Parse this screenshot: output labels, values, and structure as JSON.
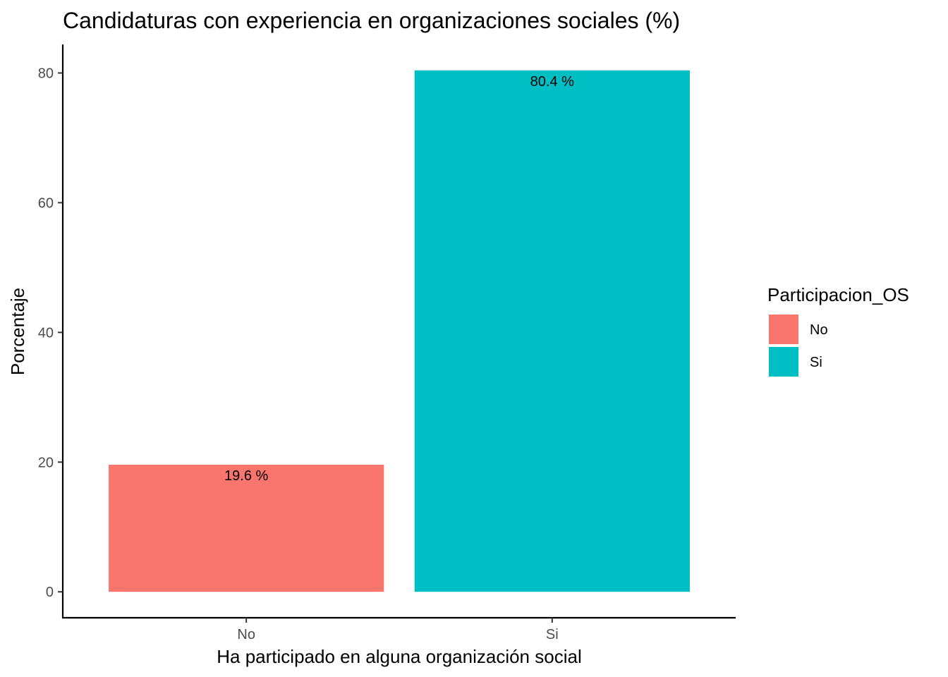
{
  "chart_data": {
    "type": "bar",
    "title": "Candidaturas con experiencia en organizaciones sociales (%)",
    "xlabel": "Ha participado en alguna organización social",
    "ylabel": "Porcentaje",
    "categories": [
      "No",
      "Si"
    ],
    "values": [
      19.6,
      80.4
    ],
    "data_labels": [
      "19.6 %",
      "80.4 %"
    ],
    "colors": [
      "#F8766D",
      "#00BFC4"
    ],
    "ylim": [
      -4,
      84.4
    ],
    "yticks": [
      0,
      20,
      40,
      60,
      80
    ],
    "ytick_labels": [
      "0",
      "20",
      "40",
      "60",
      "80"
    ],
    "grid": false,
    "legend": {
      "title": "Participacion_OS",
      "position": "right",
      "items": [
        {
          "label": "No",
          "color": "#F8766D"
        },
        {
          "label": "Si",
          "color": "#00BFC4"
        }
      ]
    }
  }
}
